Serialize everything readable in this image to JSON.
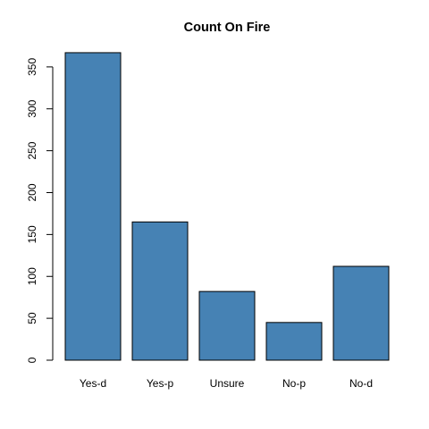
{
  "chart_data": {
    "type": "bar",
    "title": "Count On Fire",
    "xlabel": "",
    "ylabel": "",
    "categories": [
      "Yes-d",
      "Yes-p",
      "Unsure",
      "No-p",
      "No-d"
    ],
    "values": [
      367,
      165,
      82,
      45,
      112
    ],
    "ylim": [
      0,
      375
    ],
    "yticks": [
      0,
      50,
      100,
      150,
      200,
      250,
      300,
      350
    ],
    "bar_color": "#4682B4",
    "grid": false,
    "legend": "none"
  }
}
